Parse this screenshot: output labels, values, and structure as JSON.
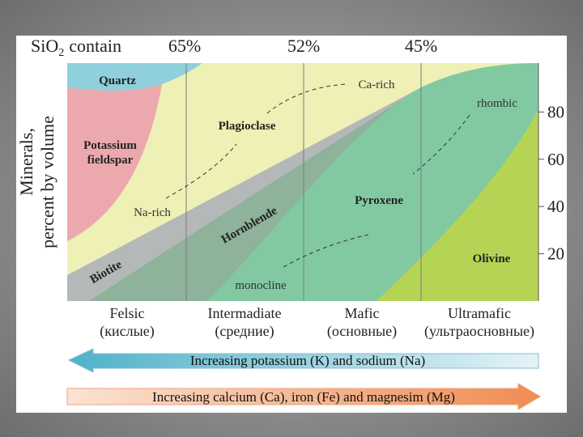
{
  "header": {
    "label": "SiO",
    "subscript": "2",
    "suffix": "contain",
    "percents": [
      "65%",
      "52%",
      "45%"
    ]
  },
  "y_axis": {
    "title_lines": [
      "Minerals,",
      "percent by volume"
    ],
    "ticks": [
      80,
      60,
      40,
      20
    ]
  },
  "minerals": {
    "quartz": "Quartz",
    "potassium_feldspar": [
      "Potassium",
      "fieldspar"
    ],
    "plagioclase": "Plagioclase",
    "hornblende": "Hornblende",
    "biotite": "Biotite",
    "pyroxene": "Pyroxene",
    "olivine": "Olivine"
  },
  "annotations": {
    "ca_rich": "Ca-rich",
    "na_rich": "Na-rich",
    "rhombic": "rhombic",
    "monocline": "monocline"
  },
  "rock_types": [
    {
      "name": "Felsic",
      "russian": "(кислые)"
    },
    {
      "name": "Intermadiate",
      "russian": "(средние)"
    },
    {
      "name": "Mafic",
      "russian": "(основные)"
    },
    {
      "name": "Ultramafic",
      "russian": "(ультраосновные)"
    }
  ],
  "arrows": [
    "Increasing potassium (K) and sodium (Na)",
    "Increasing calcium (Ca), iron (Fe) and magnesim (Mg)"
  ]
}
